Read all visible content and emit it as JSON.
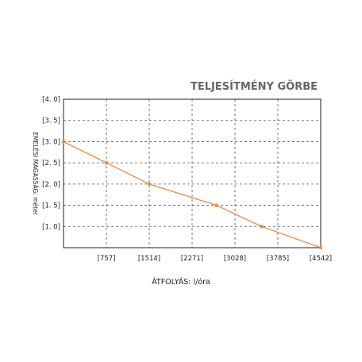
{
  "chart_data": {
    "type": "line",
    "title": "TELJESÍTMÉNY GÖRBE",
    "xlabel": "ÁTFOLYÁS: l/óra",
    "ylabel": "EMELÉSI MAGASSÁG: méter",
    "x_tick_labels": [
      "[757]",
      "[1514]",
      "[2271]",
      "[3028]",
      "[3785]",
      "[4542]"
    ],
    "y_tick_labels": [
      "[4. 0]",
      "[3. 5]",
      "[3. 0]",
      "[2. 5]",
      "[2. 0]",
      "[1. 5]",
      "[1. 0]"
    ],
    "x_ticks": [
      757,
      1514,
      2271,
      3028,
      3785,
      4542
    ],
    "y_ticks": [
      4.0,
      3.5,
      3.0,
      2.5,
      2.0,
      1.5,
      1.0
    ],
    "xlim": [
      0,
      4542
    ],
    "ylim": [
      0.5,
      4.0
    ],
    "grid": true,
    "series": [
      {
        "x": [
          0,
          757,
          1514,
          2700,
          3500,
          4542
        ],
        "y": [
          3.0,
          2.5,
          2.0,
          1.5,
          1.0,
          0.5
        ],
        "color": "#f08a3c"
      }
    ]
  },
  "colors": {
    "line": "#f08a3c",
    "marker": "#f08a3c",
    "grid": "#555555",
    "frame": "#222222",
    "title": "#666666"
  }
}
